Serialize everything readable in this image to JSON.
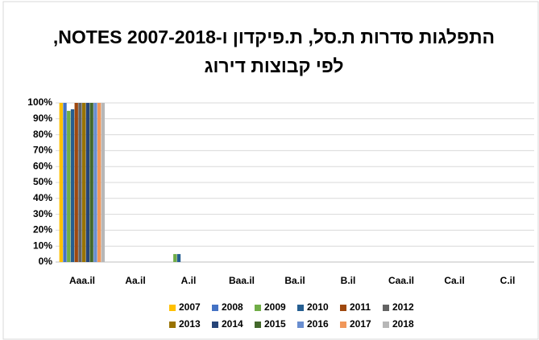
{
  "chart_data": {
    "type": "bar",
    "title": [
      "התפלגות סדרות ת.סל, ת.פיקדון ו-NOTES 2007-2018,",
      "לפי קבוצות דירוג"
    ],
    "categories": [
      "Aaa.il",
      "Aa.il",
      "A.il",
      "Baa.il",
      "Ba.il",
      "B.il",
      "Caa.il",
      "Ca.il",
      "C.il"
    ],
    "series": [
      {
        "name": "2007",
        "color": "#ffc000",
        "values": [
          100,
          0,
          0,
          0,
          0,
          0,
          0,
          0,
          0
        ]
      },
      {
        "name": "2008",
        "color": "#4472c4",
        "values": [
          100,
          0,
          0,
          0,
          0,
          0,
          0,
          0,
          0
        ]
      },
      {
        "name": "2009",
        "color": "#70ad47",
        "values": [
          95,
          0,
          5,
          0,
          0,
          0,
          0,
          0,
          0
        ]
      },
      {
        "name": "2010",
        "color": "#255e91",
        "values": [
          96,
          0,
          5,
          0,
          0,
          0,
          0,
          0,
          0
        ]
      },
      {
        "name": "2011",
        "color": "#9e480e",
        "values": [
          100,
          0,
          0,
          0,
          0,
          0,
          0,
          0,
          0
        ]
      },
      {
        "name": "2012",
        "color": "#636363",
        "values": [
          100,
          0,
          0,
          0,
          0,
          0,
          0,
          0,
          0
        ]
      },
      {
        "name": "2013",
        "color": "#997300",
        "values": [
          100,
          0,
          0,
          0,
          0,
          0,
          0,
          0,
          0
        ]
      },
      {
        "name": "2014",
        "color": "#264478",
        "values": [
          100,
          0,
          0,
          0,
          0,
          0,
          0,
          0,
          0
        ]
      },
      {
        "name": "2015",
        "color": "#43682b",
        "values": [
          100,
          0,
          0,
          0,
          0,
          0,
          0,
          0,
          0
        ]
      },
      {
        "name": "2016",
        "color": "#698ed0",
        "values": [
          100,
          0,
          0,
          0,
          0,
          0,
          0,
          0,
          0
        ]
      },
      {
        "name": "2017",
        "color": "#f1975a",
        "values": [
          100,
          0,
          0,
          0,
          0,
          0,
          0,
          0,
          0
        ]
      },
      {
        "name": "2018",
        "color": "#b7b7b7",
        "values": [
          100,
          0,
          0,
          0,
          0,
          0,
          0,
          0,
          0
        ]
      }
    ],
    "ylim": [
      0,
      100
    ],
    "yticks": [
      {
        "value": 0,
        "label": "0%"
      },
      {
        "value": 10,
        "label": "10%"
      },
      {
        "value": 20,
        "label": "20%"
      },
      {
        "value": 30,
        "label": "30%"
      },
      {
        "value": 40,
        "label": "40%"
      },
      {
        "value": 50,
        "label": "50%"
      },
      {
        "value": 60,
        "label": "60%"
      },
      {
        "value": 70,
        "label": "70%"
      },
      {
        "value": 80,
        "label": "80%"
      },
      {
        "value": 90,
        "label": "90%"
      },
      {
        "value": 100,
        "label": "100%"
      }
    ],
    "grid": true,
    "legend": "bottom"
  }
}
